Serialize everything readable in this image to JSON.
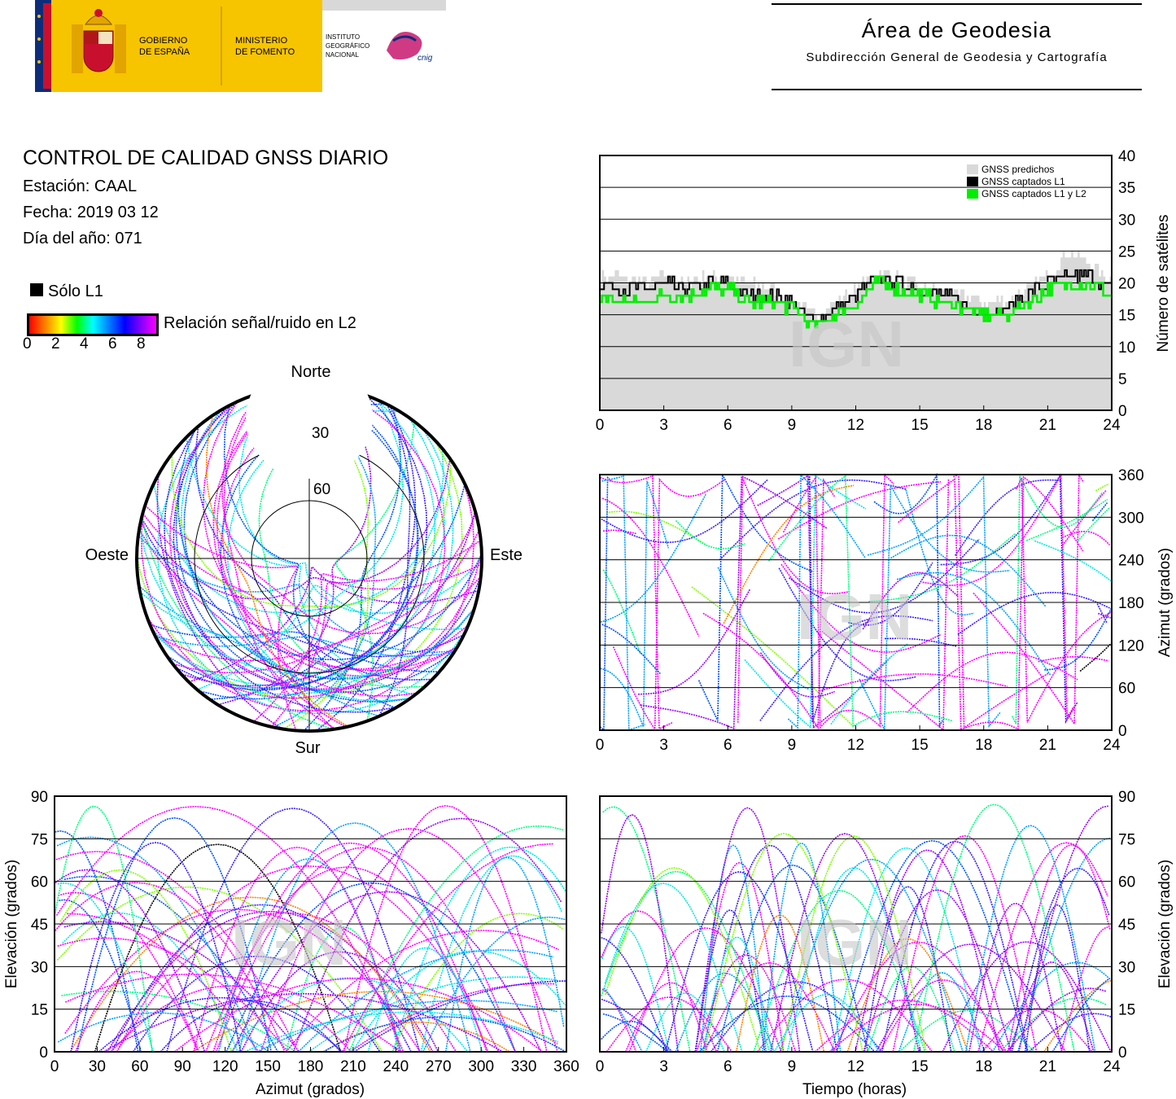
{
  "header": {
    "gov_logo_text": [
      "GOBIERNO",
      "DE ESPAÑA"
    ],
    "ministry_text": [
      "MINISTERIO",
      "DE FOMENTO"
    ],
    "institute_text": [
      "INSTITUTO",
      "GEOGRÁFICO",
      "NACIONAL"
    ],
    "cnig_text": "cnig",
    "area_title": "Área de Geodesia",
    "area_subtitle": "Subdirección General de Geodesia y Cartografía",
    "colors": {
      "gold": "#f7c400",
      "red": "#c8102e",
      "flag_blue": "#0d2d7a"
    }
  },
  "info": {
    "title": "CONTROL DE CALIDAD GNSS DIARIO",
    "station": "Estación: CAAL",
    "date": "Fecha: 2019 03 12",
    "doy": "Día del año: 071",
    "only_l1_label": "Sólo L1",
    "snr_label": "Relación señal/ruido en L2",
    "snr_ticks": [
      "0",
      "2",
      "4",
      "6",
      "8"
    ]
  },
  "watermark": "IGN",
  "chart_data": [
    {
      "id": "satellites-count",
      "type": "area",
      "xlim": [
        0,
        24
      ],
      "ylim": [
        0,
        40
      ],
      "x_ticks": [
        "0",
        "3",
        "6",
        "9",
        "12",
        "15",
        "18",
        "21",
        "24"
      ],
      "y_ticks": [
        "0",
        "5",
        "10",
        "15",
        "20",
        "25",
        "30",
        "35",
        "40"
      ],
      "ylabel": "Número de satélites",
      "legend_position": "top-right",
      "grid": true,
      "x": [
        0,
        1,
        2,
        3,
        4,
        5,
        6,
        7,
        8,
        9,
        10,
        11,
        12,
        13,
        14,
        15,
        16,
        17,
        18,
        19,
        20,
        21,
        22,
        23,
        24
      ],
      "series": [
        {
          "name": "GNSS predichos",
          "color": "#d9d9d9",
          "values": [
            21,
            21,
            20,
            21,
            20,
            21,
            21,
            20,
            19,
            17,
            15,
            17,
            19,
            22,
            21,
            19,
            19,
            18,
            17,
            17,
            19,
            21,
            25,
            23,
            20
          ]
        },
        {
          "name": "GNSS captados L1",
          "color": "#000000",
          "values": [
            20,
            19,
            19,
            20,
            19,
            20,
            20,
            18,
            18,
            17,
            14,
            16,
            18,
            21,
            20,
            19,
            18,
            17,
            15,
            16,
            18,
            20,
            21,
            21,
            19
          ]
        },
        {
          "name": "GNSS captados L1 y L2",
          "color": "#00ee00",
          "values": [
            18,
            17,
            17,
            18,
            18,
            19,
            19,
            17,
            17,
            16,
            13,
            15,
            17,
            20,
            19,
            18,
            17,
            16,
            15,
            15,
            17,
            19,
            20,
            20,
            18
          ]
        }
      ]
    },
    {
      "id": "skyplot",
      "type": "scatter",
      "projection": "polar",
      "direction_labels": {
        "north": "Norte",
        "south": "Sur",
        "west": "Oeste",
        "east": "Este"
      },
      "ring_labels": [
        "30",
        "60"
      ]
    },
    {
      "id": "azimuth-time",
      "type": "scatter",
      "xlim": [
        0,
        24
      ],
      "ylim": [
        0,
        360
      ],
      "x_ticks": [
        "0",
        "3",
        "6",
        "9",
        "12",
        "15",
        "18",
        "21",
        "24"
      ],
      "y_ticks": [
        "0",
        "60",
        "120",
        "180",
        "240",
        "300",
        "360"
      ],
      "ylabel": "Azimut (grados)",
      "grid": true
    },
    {
      "id": "elevation-azimuth",
      "type": "scatter",
      "xlim": [
        0,
        360
      ],
      "ylim": [
        0,
        90
      ],
      "x_ticks": [
        "0",
        "30",
        "60",
        "90",
        "120",
        "150",
        "180",
        "210",
        "240",
        "270",
        "300",
        "330",
        "360"
      ],
      "y_ticks": [
        "0",
        "15",
        "30",
        "45",
        "60",
        "75",
        "90"
      ],
      "xlabel": "Azimut (grados)",
      "ylabel": "Elevación (grados)",
      "grid": true
    },
    {
      "id": "elevation-time",
      "type": "scatter",
      "xlim": [
        0,
        24
      ],
      "ylim": [
        0,
        90
      ],
      "x_ticks": [
        "0",
        "3",
        "6",
        "9",
        "12",
        "15",
        "18",
        "21",
        "24"
      ],
      "y_ticks": [
        "0",
        "15",
        "30",
        "45",
        "60",
        "75",
        "90"
      ],
      "xlabel": "Tiempo (horas)",
      "ylabel": "Elevación (grados)",
      "grid": true
    }
  ]
}
